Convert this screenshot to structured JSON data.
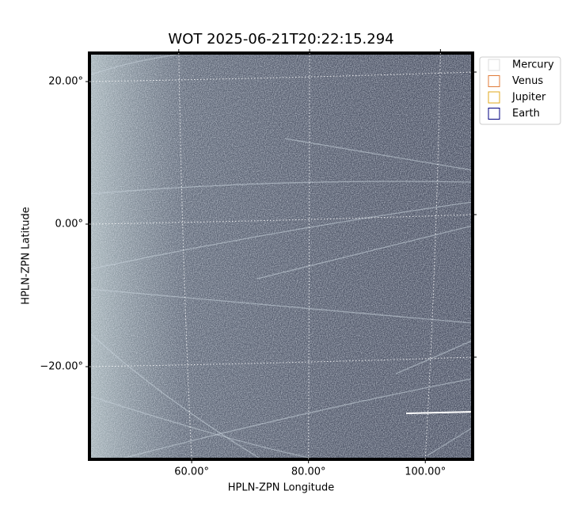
{
  "chart_data": {
    "type": "image",
    "title": "WOT 2025-06-21T20:22:15.294",
    "x_label": "HPLN-ZPN Longitude",
    "y_label": "HPLN-ZPN Latitude",
    "xlim": [
      42.5,
      108.1
    ],
    "ylim": [
      -33,
      24
    ],
    "xticks": [
      {
        "value": 60,
        "label": "60.00°"
      },
      {
        "value": 80,
        "label": "80.00°"
      },
      {
        "value": 100,
        "label": "100.00°"
      }
    ],
    "yticks": [
      {
        "value": 20,
        "label": "20.00°"
      },
      {
        "value": 0,
        "label": "0.00°"
      },
      {
        "value": -20,
        "label": "−20.00°"
      }
    ],
    "grid": true,
    "legend_position": "outside-right",
    "series": [
      {
        "name": "Mercury",
        "color": "#dddddd"
      },
      {
        "name": "Venus",
        "color": "#e07b39"
      },
      {
        "name": "Jupiter",
        "color": "#e0a81c"
      },
      {
        "name": "Earth",
        "color": "#000080"
      }
    ]
  }
}
